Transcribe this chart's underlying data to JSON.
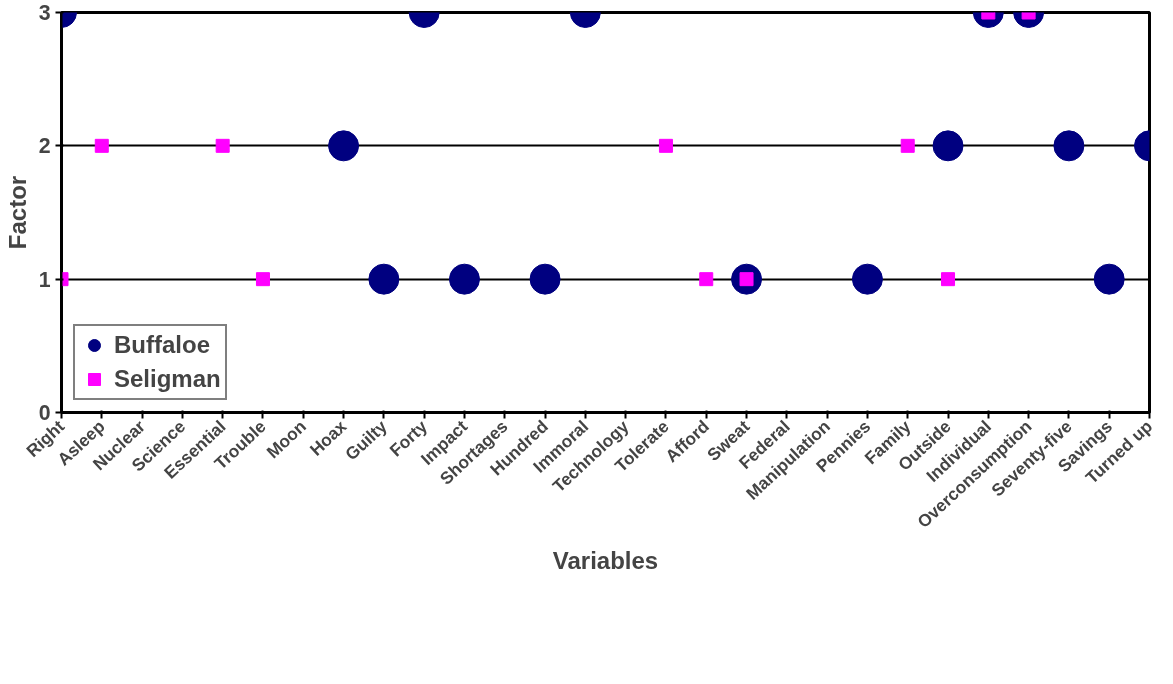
{
  "chart_data": {
    "type": "scatter",
    "xlabel": "Variables",
    "ylabel": "Factor",
    "categories": [
      "Right",
      "Asleep",
      "Nuclear",
      "Science",
      "Essential",
      "Trouble",
      "Moon",
      "Hoax",
      "Guilty",
      "Forty",
      "Impact",
      "Shortages",
      "Hundred",
      "Immoral",
      "Technology",
      "Tolerate",
      "Afford",
      "Sweat",
      "Federal",
      "Manipulation",
      "Pennies",
      "Family",
      "Outside",
      "Individual",
      "Overconsumption",
      "Seventy-five",
      "Savings",
      "Turned up"
    ],
    "series": [
      {
        "name": "Buffaloe",
        "color": "#000080",
        "marker": "circle",
        "values": [
          3,
          null,
          null,
          null,
          null,
          null,
          null,
          2,
          1,
          3,
          1,
          null,
          1,
          3,
          null,
          null,
          null,
          1,
          null,
          null,
          1,
          null,
          2,
          3,
          3,
          2,
          1,
          2
        ]
      },
      {
        "name": "Seligman",
        "color": "#ff00ff",
        "marker": "square",
        "values": [
          1,
          2,
          null,
          null,
          2,
          1,
          null,
          null,
          null,
          null,
          null,
          null,
          null,
          null,
          null,
          2,
          1,
          1,
          null,
          null,
          null,
          2,
          1,
          3,
          3,
          null,
          null,
          null
        ]
      }
    ],
    "ylim": [
      0,
      3
    ],
    "yticks": [
      0,
      1,
      2,
      3
    ],
    "grid": "y",
    "legend": "bottom left"
  }
}
